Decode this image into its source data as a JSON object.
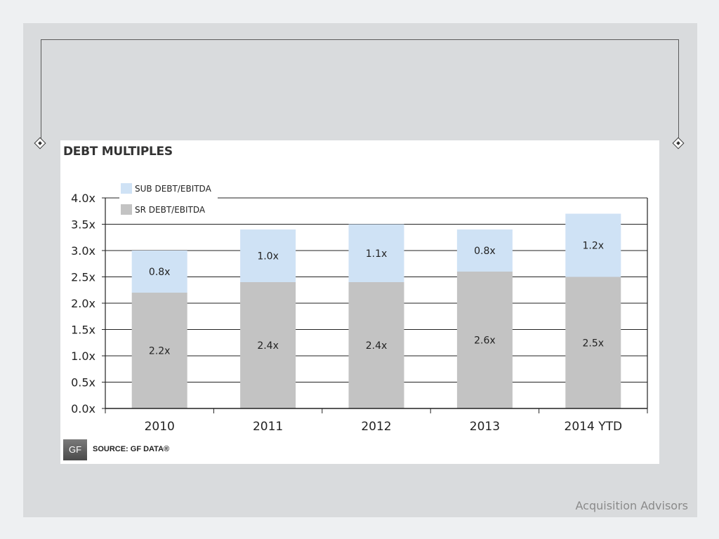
{
  "footer": {
    "brand": "Acquisition Advisors"
  },
  "source": {
    "logo_text": "GF",
    "label": "SOURCE: GF DATA®"
  },
  "colors": {
    "sub": "#cfe2f5",
    "sr": "#c3c3c3",
    "grid": "#222222"
  },
  "chart_data": {
    "type": "bar",
    "stacked": true,
    "title": "DEBT MULTIPLES",
    "categories": [
      "2010",
      "2011",
      "2012",
      "2013",
      "2014 YTD"
    ],
    "series": [
      {
        "name": "SR DEBT/EBITDA",
        "values": [
          2.2,
          2.4,
          2.4,
          2.6,
          2.5
        ],
        "labels": [
          "2.2x",
          "2.4x",
          "2.4x",
          "2.6x",
          "2.5x"
        ],
        "color": "#c3c3c3"
      },
      {
        "name": "SUB DEBT/EBITDA",
        "values": [
          0.8,
          1.0,
          1.1,
          0.8,
          1.2
        ],
        "labels": [
          "0.8x",
          "1.0x",
          "1.1x",
          "0.8x",
          "1.2x"
        ],
        "color": "#cfe2f5"
      }
    ],
    "ylim": [
      0,
      4.0
    ],
    "yticks": [
      "0.0x",
      "0.5x",
      "1.0x",
      "1.5x",
      "2.0x",
      "2.5x",
      "3.0x",
      "3.5x",
      "4.0x"
    ],
    "grid": true,
    "legend": "top-left"
  }
}
